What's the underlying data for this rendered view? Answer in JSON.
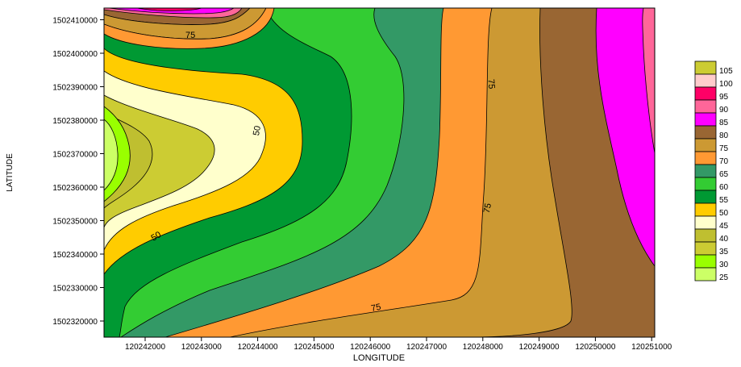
{
  "chart_data": {
    "type": "contour",
    "title": "",
    "xlabel": "LONGITUDE",
    "ylabel": "LATITUDE",
    "x_ticks": [
      "120242000",
      "120243000",
      "120244000",
      "120245000",
      "120246000",
      "120247000",
      "120248000",
      "120249000",
      "120250000",
      "120251000"
    ],
    "y_ticks": [
      "1502320000",
      "1502330000",
      "1502340000",
      "1502350000",
      "1502360000",
      "1502370000",
      "1502380000",
      "1502390000",
      "1502400000",
      "1502410000"
    ],
    "contour_labels": [
      "75",
      "50",
      "75",
      "75",
      "50",
      "75"
    ],
    "legend": {
      "position": "right",
      "levels": [
        "25",
        "30",
        "35",
        "40",
        "45",
        "50",
        "55",
        "60",
        "65",
        "70",
        "75",
        "80",
        "85",
        "90",
        "95",
        "100",
        "105"
      ],
      "colors": [
        "#ccff66",
        "#99ff00",
        "#cccc33",
        "#bfbf30",
        "#ffffcc",
        "#ffcc00",
        "#009933",
        "#33cc33",
        "#339966",
        "#ff9933",
        "#cc9933",
        "#996633",
        "#ff00ff",
        "#ff6699",
        "#ff0066",
        "#ffcccc",
        "#cccc33"
      ]
    },
    "grid": false
  }
}
